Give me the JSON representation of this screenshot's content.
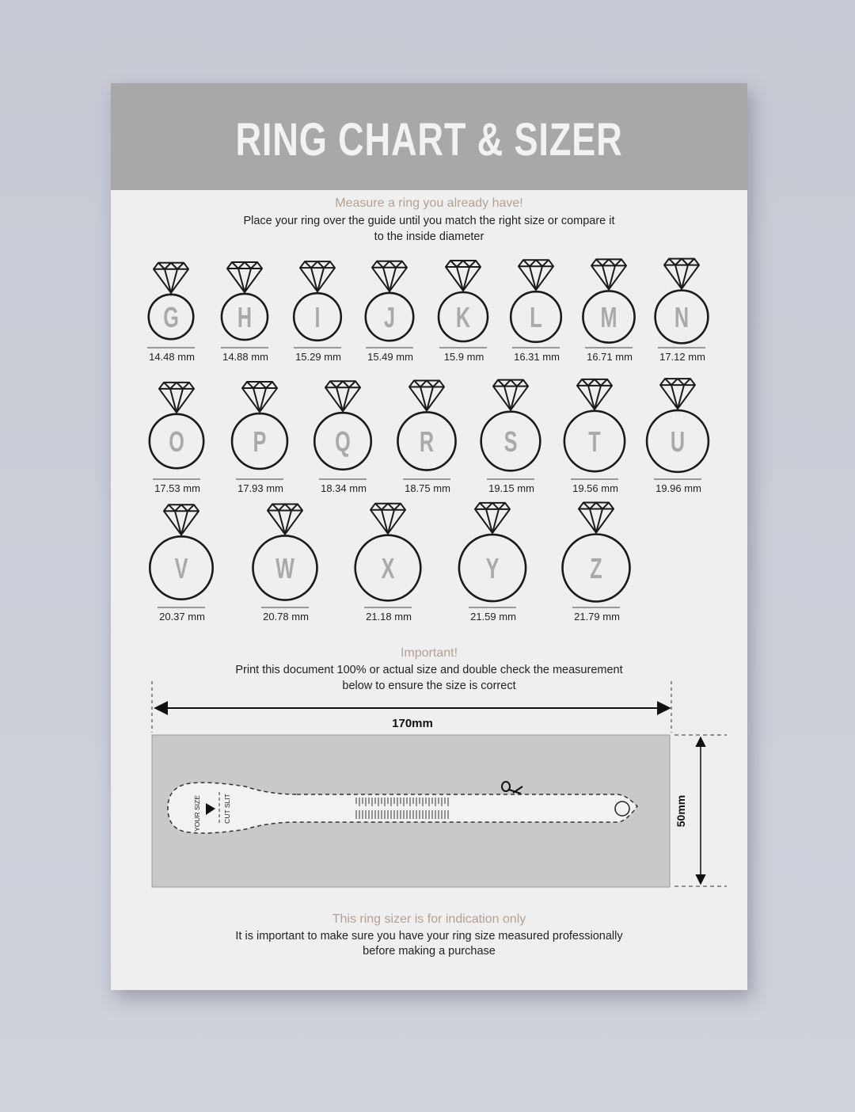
{
  "title": "RING CHART & SIZER",
  "intro": {
    "heading": "Measure a ring you already have!",
    "line1": "Place your ring over the guide until you match the right size or compare it",
    "line2": "to the inside diameter"
  },
  "rings": [
    [
      {
        "letter": "G",
        "size": "14.48 mm"
      },
      {
        "letter": "H",
        "size": "14.88 mm"
      },
      {
        "letter": "I",
        "size": "15.29 mm"
      },
      {
        "letter": "J",
        "size": "15.49 mm"
      },
      {
        "letter": "K",
        "size": "15.9 mm"
      },
      {
        "letter": "L",
        "size": "16.31 mm"
      },
      {
        "letter": "M",
        "size": "16.71 mm"
      },
      {
        "letter": "N",
        "size": "17.12 mm"
      }
    ],
    [
      {
        "letter": "O",
        "size": "17.53 mm"
      },
      {
        "letter": "P",
        "size": "17.93 mm"
      },
      {
        "letter": "Q",
        "size": "18.34 mm"
      },
      {
        "letter": "R",
        "size": "18.75 mm"
      },
      {
        "letter": "S",
        "size": "19.15 mm"
      },
      {
        "letter": "T",
        "size": "19.56 mm"
      },
      {
        "letter": "U",
        "size": "19.96 mm"
      }
    ],
    [
      {
        "letter": "V",
        "size": "20.37 mm"
      },
      {
        "letter": "W",
        "size": "20.78 mm"
      },
      {
        "letter": "X",
        "size": "21.18 mm"
      },
      {
        "letter": "Y",
        "size": "21.59 mm"
      },
      {
        "letter": "Z",
        "size": "21.79 mm"
      }
    ]
  ],
  "important": {
    "heading": "Important!",
    "line1": "Print this document 100% or actual size and double check the measurement",
    "line2": "below to ensure the size is correct"
  },
  "sizer": {
    "width_label": "170mm",
    "height_label": "50mm",
    "your_size": "YOUR SIZE",
    "cut_slit": "CUT SLIT"
  },
  "footer": {
    "heading": "This ring sizer is for indication only",
    "line1": "It is important to make sure you have your ring size measured professionally",
    "line2": "before making a purchase"
  },
  "colors": {
    "header": "#a8a8a8",
    "accent": "#b5a193",
    "letter": "#a9a9a9"
  }
}
